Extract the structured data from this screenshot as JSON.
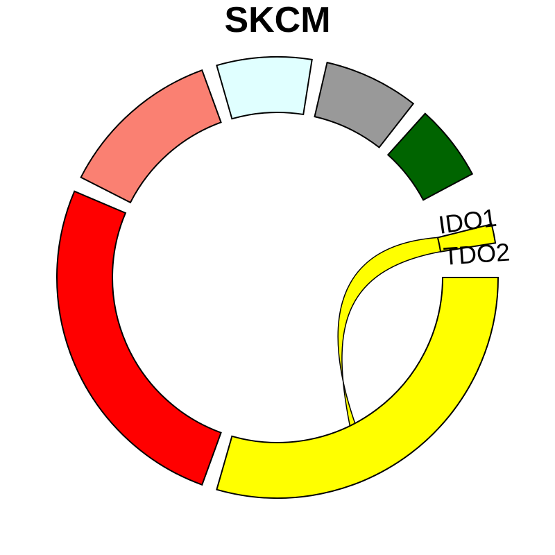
{
  "title": "SKCM",
  "colors": {
    "ido1": "#ffff00",
    "tdo2": "#ffff00",
    "red": "#ff0000",
    "salmon": "#fa8072",
    "lightcyan": "#e0ffff",
    "gray": "#999999",
    "darkgreen": "#006400",
    "link": "#ffff00"
  },
  "segments": [
    {
      "key": "ido1",
      "label": "IDO1",
      "start": 76,
      "end": 81
    },
    {
      "key": "tdo2",
      "label": "TDO2",
      "start": 90,
      "end": 196
    },
    {
      "key": "red",
      "label": "",
      "start": 200,
      "end": 293
    },
    {
      "key": "salmon",
      "label": "",
      "start": 297,
      "end": 340
    },
    {
      "key": "lightcyan",
      "label": "",
      "start": 344,
      "end": 9
    },
    {
      "key": "gray",
      "label": "",
      "start": 13,
      "end": 38
    },
    {
      "key": "darkgreen",
      "label": "",
      "start": 42,
      "end": 62
    }
  ],
  "link": {
    "from": "ido1",
    "to": "tdo2",
    "from_range": [
      76,
      81
    ],
    "to_range": [
      152,
      154
    ]
  }
}
